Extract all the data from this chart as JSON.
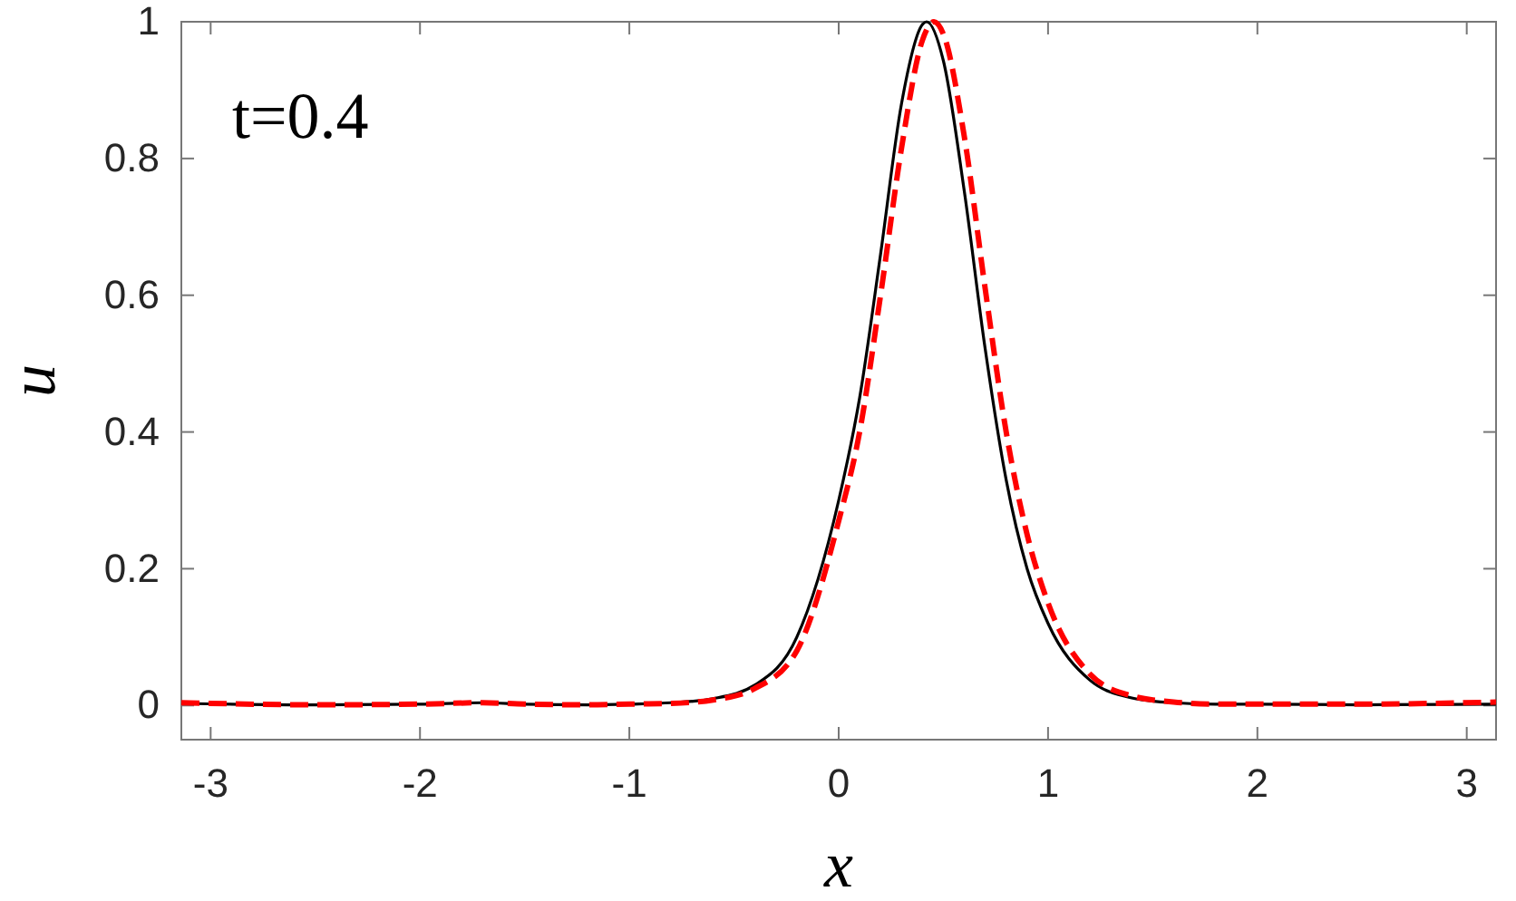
{
  "chart_data": {
    "type": "line",
    "xlabel": "x",
    "ylabel": "u",
    "annotations": [
      "t=0.4"
    ],
    "xlim": [
      -3.14,
      3.14
    ],
    "ylim": [
      -0.05,
      1
    ],
    "xticks": [
      -3,
      -2,
      -1,
      0,
      1,
      2,
      3
    ],
    "yticks": [
      0,
      0.2,
      0.4,
      0.6,
      0.8,
      1
    ],
    "grid": false,
    "series": [
      {
        "color": "#000000",
        "line_style": "solid",
        "x": [
          -3.14,
          -2.5,
          -2,
          -1.7,
          -1.5,
          -1.2,
          -1,
          -0.8,
          -0.6,
          -0.4,
          -0.2,
          0,
          0.1,
          0.2,
          0.3,
          0.4,
          0.42,
          0.5,
          0.6,
          0.7,
          0.8,
          0.9,
          1,
          1.2,
          1.4,
          1.6,
          1.8,
          2,
          2.5,
          3.14
        ],
        "values": [
          0.003,
          0.001,
          0.002,
          0.004,
          0.002,
          0.001,
          0.002,
          0.004,
          0.01,
          0.03,
          0.1,
          0.3,
          0.45,
          0.66,
          0.88,
          0.996,
          1,
          0.943,
          0.752,
          0.521,
          0.33,
          0.2,
          0.12,
          0.037,
          0.011,
          0.004,
          0.002,
          0.002,
          0.001,
          0.002
        ]
      },
      {
        "color": "#ff0000",
        "line_style": "dashed",
        "x": [
          -3.14,
          -2.5,
          -2,
          -1.7,
          -1.5,
          -1.2,
          -1,
          -0.8,
          -0.6,
          -0.4,
          -0.2,
          0,
          0.1,
          0.2,
          0.3,
          0.4,
          0.455,
          0.5,
          0.6,
          0.7,
          0.8,
          0.9,
          1,
          1.2,
          1.4,
          1.6,
          1.8,
          2,
          2.5,
          3.14
        ],
        "values": [
          0.004,
          0.001,
          0.002,
          0.004,
          0.002,
          0.001,
          0.002,
          0.003,
          0.008,
          0.025,
          0.08,
          0.27,
          0.4,
          0.6,
          0.815,
          0.973,
          1,
          0.982,
          0.832,
          0.609,
          0.4,
          0.25,
          0.15,
          0.046,
          0.014,
          0.005,
          0.002,
          0.002,
          0.002,
          0.005
        ]
      }
    ]
  }
}
